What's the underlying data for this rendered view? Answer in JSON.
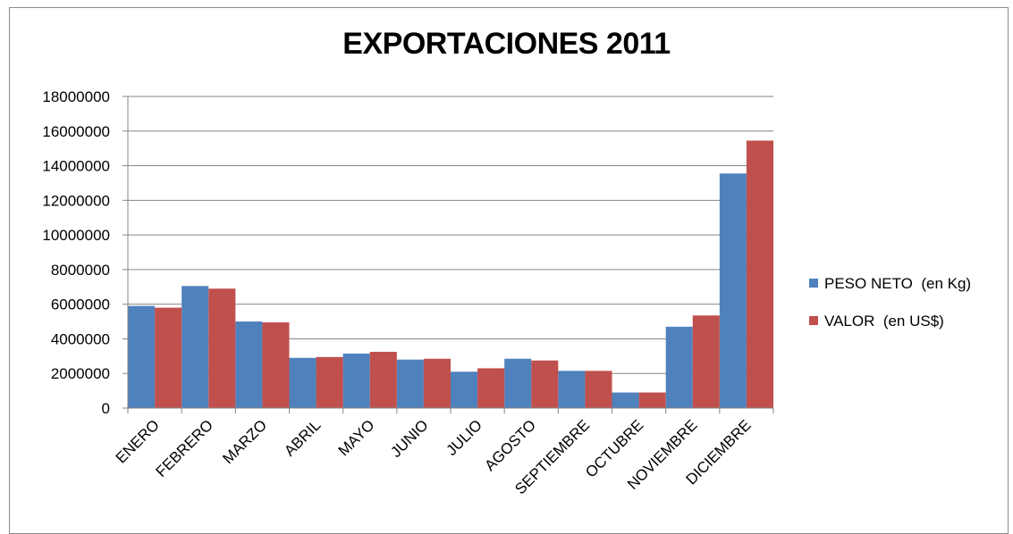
{
  "chart_data": {
    "type": "bar",
    "title": "EXPORTACIONES 2011",
    "xlabel": "",
    "ylabel": "",
    "ylim": [
      0,
      18000000
    ],
    "yticks": [
      "0",
      "2000000",
      "4000000",
      "6000000",
      "8000000",
      "10000000",
      "12000000",
      "14000000",
      "16000000",
      "18000000"
    ],
    "grid": true,
    "legend_position": "right",
    "categories": [
      "ENERO",
      "FEBRERO",
      "MARZO",
      "ABRIL",
      "MAYO",
      "JUNIO",
      "JULIO",
      "AGOSTO",
      "SEPTIEMBRE",
      "OCTUBRE",
      "NOVIEMBRE",
      "DICIEMBRE"
    ],
    "series": [
      {
        "name": "PESO NETO  (en Kg)",
        "color": "#4f81bd",
        "values": [
          5900000,
          7050000,
          5000000,
          2900000,
          3150000,
          2800000,
          2100000,
          2850000,
          2150000,
          900000,
          4700000,
          13550000
        ]
      },
      {
        "name": "VALOR  (en US$)",
        "color": "#c0504d",
        "values": [
          5800000,
          6900000,
          4950000,
          2950000,
          3250000,
          2850000,
          2300000,
          2750000,
          2150000,
          900000,
          5350000,
          15450000
        ]
      }
    ]
  }
}
